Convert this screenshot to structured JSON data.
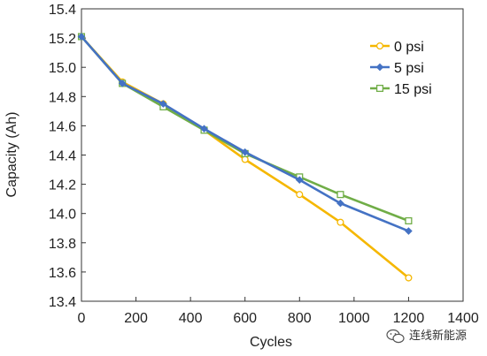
{
  "chart_data": {
    "type": "line",
    "xlabel": "Cycles",
    "ylabel": "Capacity (Ah)",
    "xlim": [
      0,
      1400
    ],
    "ylim": [
      13.4,
      15.4
    ],
    "xticks": [
      "0",
      "200",
      "400",
      "600",
      "800",
      "1000",
      "1200",
      "1400"
    ],
    "yticks": [
      "13.4",
      "13.6",
      "13.8",
      "14.0",
      "14.2",
      "14.4",
      "14.6",
      "14.8",
      "15.0",
      "15.2",
      "15.4"
    ],
    "grid": false,
    "legend_position": "top-right",
    "series": [
      {
        "name": "0 psi",
        "color": "#f5b700",
        "marker": "circle",
        "x": [
          0,
          150,
          300,
          450,
          600,
          800,
          950,
          1200
        ],
        "y": [
          15.21,
          14.9,
          14.75,
          14.57,
          14.37,
          14.13,
          13.94,
          13.56
        ]
      },
      {
        "name": "5 psi",
        "color": "#4472c4",
        "marker": "diamond",
        "x": [
          0,
          150,
          300,
          450,
          600,
          800,
          950,
          1200
        ],
        "y": [
          15.21,
          14.89,
          14.75,
          14.58,
          14.42,
          14.23,
          14.07,
          13.88
        ]
      },
      {
        "name": "15 psi",
        "color": "#70ad47",
        "marker": "square",
        "x": [
          0,
          150,
          300,
          450,
          600,
          800,
          950,
          1200
        ],
        "y": [
          15.21,
          14.89,
          14.73,
          14.57,
          14.41,
          14.25,
          14.13,
          13.95
        ]
      }
    ]
  },
  "watermark": {
    "text": "连线新能源",
    "icon": "wechat-icon"
  }
}
